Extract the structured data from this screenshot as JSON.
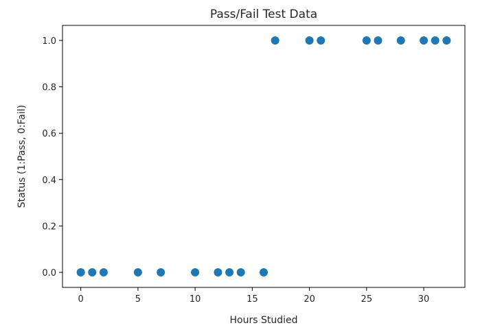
{
  "chart_data": {
    "type": "scatter",
    "title": "Pass/Fail Test Data",
    "xlabel": "Hours Studied",
    "ylabel": "Status (1:Pass, 0:Fail)",
    "xlim": [
      -1.6,
      33.6
    ],
    "ylim": [
      -0.065,
      1.065
    ],
    "xticks": [
      0,
      5,
      10,
      15,
      20,
      25,
      30
    ],
    "xtick_labels": [
      "0",
      "5",
      "10",
      "15",
      "20",
      "25",
      "30"
    ],
    "yticks": [
      0.0,
      0.2,
      0.4,
      0.6,
      0.8,
      1.0
    ],
    "ytick_labels": [
      "0.0",
      "0.2",
      "0.4",
      "0.6",
      "0.8",
      "1.0"
    ],
    "grid": false,
    "marker_color": "#1f77b4",
    "points": {
      "x": [
        0,
        1,
        2,
        5,
        7,
        10,
        12,
        13,
        14,
        16,
        17,
        20,
        21,
        25,
        26,
        28,
        30,
        31,
        32
      ],
      "y": [
        0,
        0,
        0,
        0,
        0,
        0,
        0,
        0,
        0,
        0,
        1,
        1,
        1,
        1,
        1,
        1,
        1,
        1,
        1
      ]
    }
  }
}
